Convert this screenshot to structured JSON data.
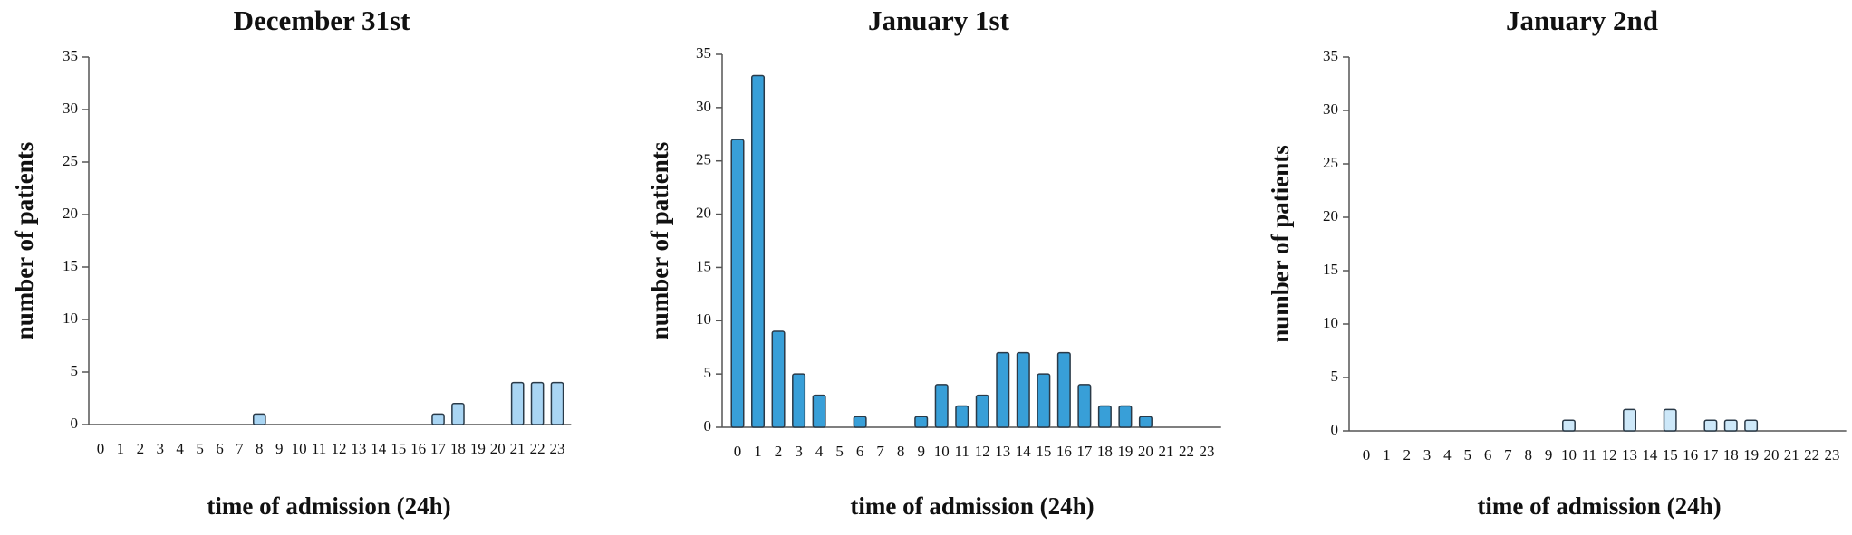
{
  "chart_data": [
    {
      "type": "bar",
      "title": "December 31st",
      "x_label": "time of admission (24h)",
      "y_label": "number of patients",
      "categories": [
        "0",
        "1",
        "2",
        "3",
        "4",
        "5",
        "6",
        "7",
        "8",
        "9",
        "10",
        "11",
        "12",
        "13",
        "14",
        "15",
        "16",
        "17",
        "18",
        "19",
        "20",
        "21",
        "22",
        "23"
      ],
      "values": [
        0,
        0,
        0,
        0,
        0,
        0,
        0,
        0,
        1,
        0,
        0,
        0,
        0,
        0,
        0,
        0,
        0,
        1,
        2,
        0,
        0,
        4,
        4,
        4
      ],
      "color": "#a9d5f3",
      "ylim": [
        0,
        35
      ],
      "yticks": [
        0,
        5,
        10,
        15,
        20,
        25,
        30,
        35
      ]
    },
    {
      "type": "bar",
      "title": "January 1st",
      "x_label": "time of admission (24h)",
      "y_label": "number of patients",
      "categories": [
        "0",
        "1",
        "2",
        "3",
        "4",
        "5",
        "6",
        "7",
        "8",
        "9",
        "10",
        "11",
        "12",
        "13",
        "14",
        "15",
        "16",
        "17",
        "18",
        "19",
        "20",
        "21",
        "22",
        "23"
      ],
      "values": [
        27,
        33,
        9,
        5,
        3,
        0,
        1,
        0,
        0,
        1,
        4,
        2,
        3,
        7,
        7,
        5,
        7,
        4,
        2,
        2,
        1,
        0,
        0,
        0
      ],
      "color": "#389fd8",
      "ylim": [
        0,
        35
      ],
      "yticks": [
        0,
        5,
        10,
        15,
        20,
        25,
        30,
        35
      ]
    },
    {
      "type": "bar",
      "title": "January 2nd",
      "x_label": "time of admission (24h)",
      "y_label": "number of patients",
      "categories": [
        "0",
        "1",
        "2",
        "3",
        "4",
        "5",
        "6",
        "7",
        "8",
        "9",
        "10",
        "11",
        "12",
        "13",
        "14",
        "15",
        "16",
        "17",
        "18",
        "19",
        "20",
        "21",
        "22",
        "23"
      ],
      "values": [
        0,
        0,
        0,
        0,
        0,
        0,
        0,
        0,
        0,
        0,
        1,
        0,
        0,
        2,
        0,
        2,
        0,
        1,
        1,
        1,
        0,
        0,
        0,
        0
      ],
      "color": "#cde8f9",
      "ylim": [
        0,
        35
      ],
      "yticks": [
        0,
        5,
        10,
        15,
        20,
        25,
        30,
        35
      ]
    }
  ]
}
